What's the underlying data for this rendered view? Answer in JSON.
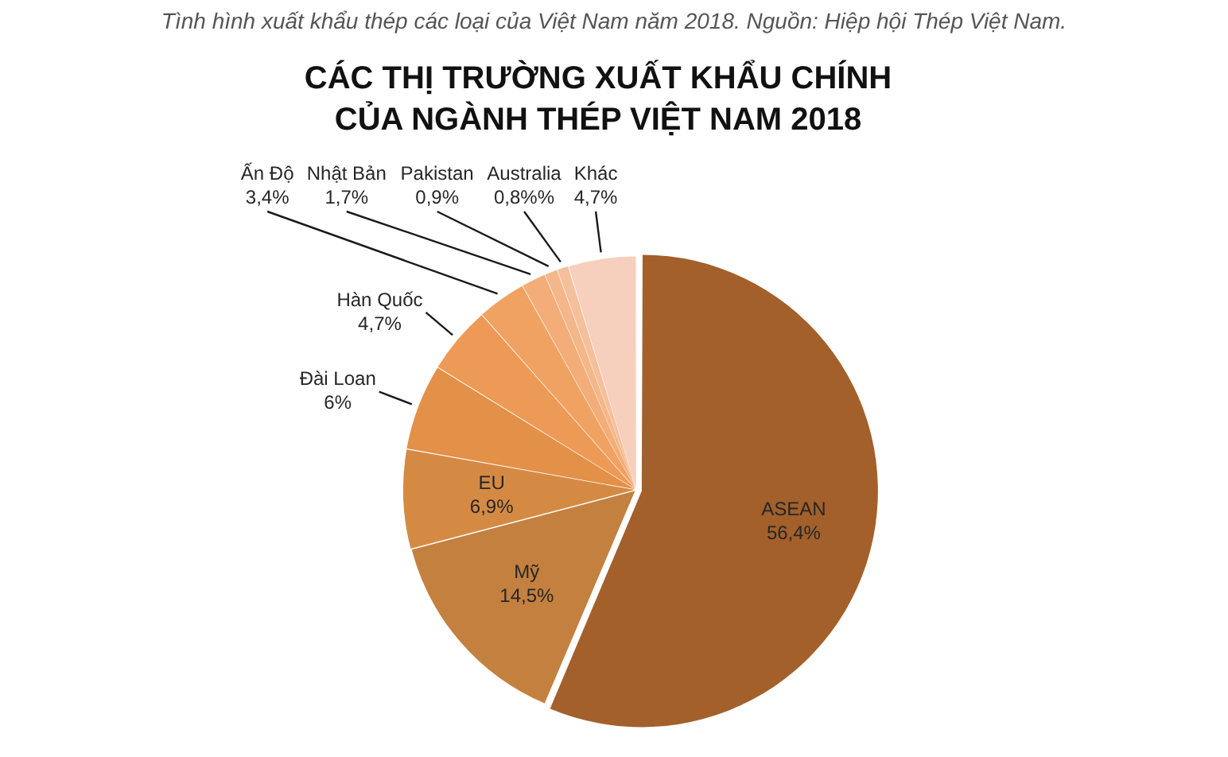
{
  "chart_data": {
    "type": "pie",
    "title": "CÁC THỊ TRƯỜNG XUẤT KHẨU CHÍNH CỦA NGÀNH THÉP VIỆT NAM 2018",
    "annotations": [
      "Tình hình xuất khẩu thép các loại của Việt Nam năm 2018. Nguồn: Hiệp hội Thép Việt Nam."
    ],
    "categories": [
      "ASEAN",
      "Mỹ",
      "EU",
      "Đài Loan",
      "Hàn Quốc",
      "Ấn Độ",
      "Nhật Bản",
      "Pakistan",
      "Australia",
      "Khác"
    ],
    "values": [
      56.4,
      14.5,
      6.9,
      6,
      4.7,
      3.4,
      1.7,
      0.9,
      0.8,
      4.7
    ],
    "value_labels": [
      "56,4%",
      "14,5%",
      "6,9%",
      "6%",
      "4,7%",
      "3,4%",
      "1,7%",
      "0,9%",
      "0,8%%",
      "4,7%"
    ],
    "colors": [
      "#a3602b",
      "#c4803f",
      "#d58a44",
      "#e39048",
      "#ec9a55",
      "#f0a262",
      "#f2ad78",
      "#f3b78a",
      "#f4c09c",
      "#f6cfbd"
    ]
  }
}
